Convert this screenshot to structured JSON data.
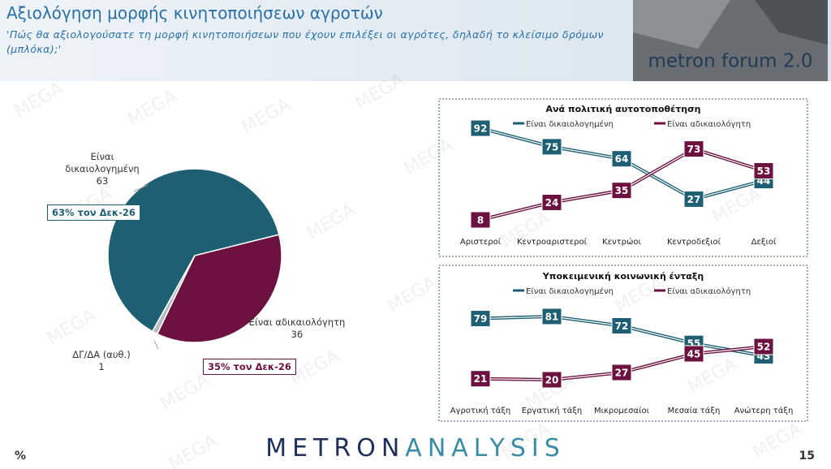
{
  "header": {
    "title": "Αξιολόγηση μορφής κινητοποιήσεων αγροτών",
    "subtitle": "'Πώς θα αξιολογούσατε τη μορφή κινητοποιήσεων που έχουν επιλέξει οι αγρότες, δηλαδή το κλείσιμο δρόμων (μπλόκα);'",
    "logo": "metron forum 2.0"
  },
  "watermark": "MEGA",
  "chart_data": [
    {
      "type": "pie",
      "categories": [
        "Είναι δικαιολογημένη",
        "Είναι αδικαιολόγητη",
        "ΔΓ/ΔΑ (αυθ.)"
      ],
      "values": [
        63,
        36,
        1
      ],
      "colors": [
        "#1e5f74",
        "#6d1240",
        "#b8bcc0"
      ],
      "annotations": [
        "63% τον Δεκ-26",
        "35% τον Δεκ-26"
      ]
    },
    {
      "type": "line",
      "title": "Ανά πολιτική αυτοτοποθέτηση",
      "categories": [
        "Αριστεροί",
        "Κεντροαριστεροί",
        "Κεντρώοι",
        "Κεντροδεξιοί",
        "Δεξιοί"
      ],
      "series": [
        {
          "name": "Είναι δικαιολογημένη",
          "color": "#1e5f74",
          "values": [
            92,
            75,
            64,
            27,
            44
          ]
        },
        {
          "name": "Είναι αδικαιολόγητη",
          "color": "#6d1240",
          "values": [
            8,
            24,
            35,
            73,
            53
          ]
        }
      ]
    },
    {
      "type": "line",
      "title": "Υποκειμενική κοινωνική ένταξη",
      "categories": [
        "Αγροτική τάξη",
        "Εργατική τάξη",
        "Μικρομεσαίοι",
        "Μεσαία τάξη",
        "Ανώτερη τάξη"
      ],
      "series": [
        {
          "name": "Είναι δικαιολογημένη",
          "color": "#1e5f74",
          "values": [
            79,
            81,
            72,
            55,
            43
          ]
        },
        {
          "name": "Είναι αδικαιολόγητη",
          "color": "#6d1240",
          "values": [
            21,
            20,
            27,
            45,
            52
          ]
        }
      ]
    }
  ],
  "footer": {
    "unit": "%",
    "brand_1": "METRON",
    "brand_2": "ANALYSIS",
    "page": "15"
  }
}
